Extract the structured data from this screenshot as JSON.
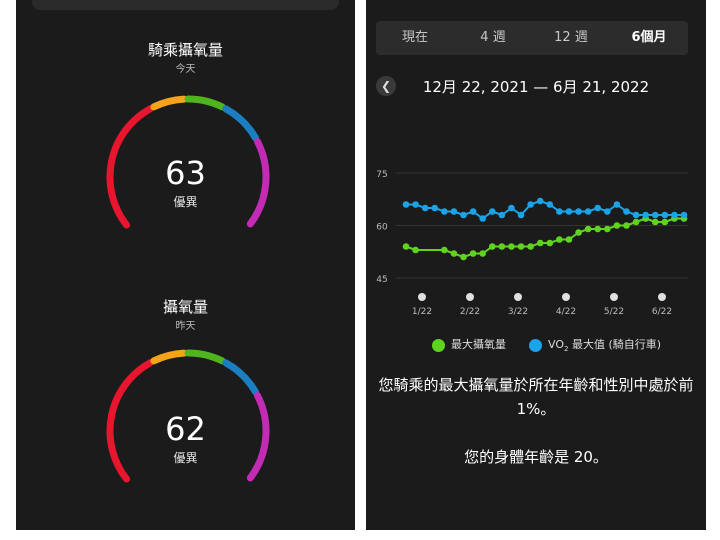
{
  "left": {
    "gauges": [
      {
        "title": "騎乘攝氧量",
        "subtitle": "今天",
        "value": "63",
        "rating": "優異"
      },
      {
        "title": "攝氧量",
        "subtitle": "昨天",
        "value": "62",
        "rating": "優異"
      }
    ],
    "colors": {
      "red": "#e8152f",
      "orange": "#f5a31a",
      "green": "#4fb41d",
      "blue": "#1a7ec0",
      "purple": "#c42bb4"
    }
  },
  "right": {
    "tabs": [
      "現在",
      "4 週",
      "12 週",
      "6個月"
    ],
    "active_tab": "6個月",
    "date_range": "12月 22, 2021 — 6月 21, 2022",
    "legend": {
      "series1": "最大攝氧量",
      "series2_prefix": "VO",
      "series2_sub": "2",
      "series2_suffix": " 最大值 (騎自行車)"
    },
    "message1": "您騎乘的最大攝氧量於所在年齡和性別中處於前 1%。",
    "message2": "您的身體年齡是 20。"
  },
  "chart_data": {
    "type": "line",
    "x_labels": [
      "1/22",
      "2/22",
      "3/22",
      "4/22",
      "5/22",
      "6/22"
    ],
    "y_ticks": [
      45,
      60,
      75
    ],
    "ylim": [
      45,
      75
    ],
    "series": [
      {
        "color": "#5ed41e",
        "values": [
          [
            0,
            54
          ],
          [
            1,
            53
          ],
          [
            4,
            53
          ],
          [
            5,
            52
          ],
          [
            6,
            51
          ],
          [
            7,
            52
          ],
          [
            8,
            52
          ],
          [
            9,
            54
          ],
          [
            10,
            54
          ],
          [
            11,
            54
          ],
          [
            12,
            54
          ],
          [
            13,
            54
          ],
          [
            14,
            55
          ],
          [
            15,
            55
          ],
          [
            16,
            56
          ],
          [
            17,
            56
          ],
          [
            18,
            58
          ],
          [
            19,
            59
          ],
          [
            20,
            59
          ],
          [
            21,
            59
          ],
          [
            22,
            60
          ],
          [
            23,
            60
          ],
          [
            24,
            61
          ],
          [
            25,
            62
          ],
          [
            26,
            61
          ],
          [
            27,
            61
          ],
          [
            28,
            62
          ],
          [
            29,
            62
          ]
        ]
      },
      {
        "color": "#1aa3e8",
        "values": [
          [
            0,
            66
          ],
          [
            1,
            66
          ],
          [
            2,
            65
          ],
          [
            3,
            65
          ],
          [
            4,
            64
          ],
          [
            5,
            64
          ],
          [
            6,
            63
          ],
          [
            7,
            64
          ],
          [
            8,
            62
          ],
          [
            9,
            64
          ],
          [
            10,
            63
          ],
          [
            11,
            65
          ],
          [
            12,
            63
          ],
          [
            13,
            66
          ],
          [
            14,
            67
          ],
          [
            15,
            66
          ],
          [
            16,
            64
          ],
          [
            17,
            64
          ],
          [
            18,
            64
          ],
          [
            19,
            64
          ],
          [
            20,
            65
          ],
          [
            21,
            64
          ],
          [
            22,
            66
          ],
          [
            23,
            64
          ],
          [
            24,
            63
          ],
          [
            25,
            63
          ],
          [
            26,
            63
          ],
          [
            27,
            63
          ],
          [
            28,
            63
          ],
          [
            29,
            63
          ]
        ]
      }
    ]
  }
}
